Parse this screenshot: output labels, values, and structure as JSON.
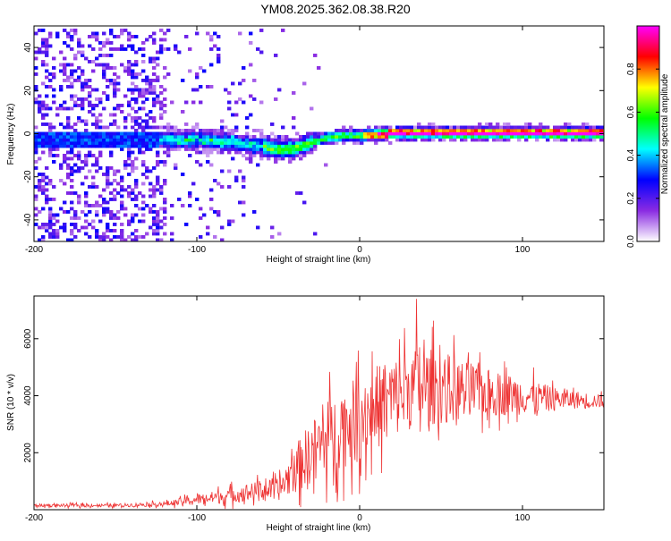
{
  "title": "YM08.2025.362.08.38.R20",
  "chart_data": [
    {
      "type": "heatmap",
      "xlabel": "Height of straight line (km)",
      "ylabel": "Frequency (Hz)",
      "xlim": [
        -200,
        150
      ],
      "ylim": [
        -50,
        50
      ],
      "xticks": [
        -200,
        -100,
        0,
        100
      ],
      "yticks": [
        -40,
        -20,
        0,
        20,
        40
      ],
      "grid": false,
      "colorbar": {
        "label": "Normalized spectral amplitude",
        "range": [
          0,
          1
        ],
        "ticks": [
          "0.0",
          "0.2",
          "0.4",
          "0.6",
          "0.8"
        ],
        "colors": [
          "#ffffff",
          "#8a2be2",
          "#0000ff",
          "#00ffff",
          "#00ff00",
          "#ffff00",
          "#ff0000",
          "#ff00ff"
        ]
      },
      "ridge": {
        "x": [
          -120,
          -100,
          -80,
          -60,
          -50,
          -40,
          -30,
          -20,
          -10,
          0,
          20,
          50,
          100,
          150
        ],
        "freq": [
          -2,
          -2,
          -3,
          -5,
          -7,
          -6,
          -3,
          -1,
          0,
          0,
          1,
          1,
          1,
          1
        ]
      }
    },
    {
      "type": "line",
      "xlabel": "Height of straight line (km)",
      "ylabel": "SNR (10 * v/v)",
      "xlim": [
        -200,
        150
      ],
      "ylim": [
        0,
        7500
      ],
      "xticks": [
        -200,
        -100,
        0,
        100
      ],
      "yticks": [
        2000,
        4000,
        6000
      ],
      "grid": false,
      "color": "#ee3333",
      "envelope": {
        "x": [
          -200,
          -150,
          -120,
          -100,
          -80,
          -60,
          -50,
          -40,
          -30,
          -20,
          -10,
          0,
          10,
          20,
          30,
          40,
          50,
          60,
          80,
          100,
          120,
          150
        ],
        "mean": [
          150,
          150,
          200,
          350,
          500,
          700,
          700,
          1400,
          2000,
          2500,
          2900,
          3200,
          3600,
          3900,
          4200,
          4300,
          4300,
          4200,
          4100,
          4000,
          3900,
          3800
        ],
        "amp": [
          100,
          100,
          150,
          300,
          500,
          600,
          700,
          1500,
          2000,
          2400,
          2600,
          2700,
          2700,
          2600,
          2600,
          2500,
          2400,
          2000,
          1500,
          1200,
          700,
          400
        ]
      },
      "peak": {
        "x": 35,
        "y": 7400
      }
    }
  ]
}
